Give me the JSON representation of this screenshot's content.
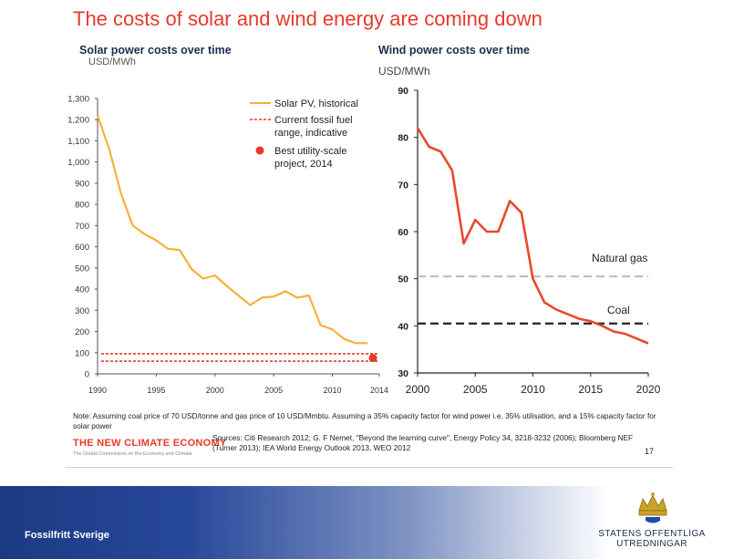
{
  "title": "The costs of solar and wind energy are coming down",
  "colors": {
    "accent": "#e8392b",
    "solar": "#f6b03c",
    "wind": "#e8492b",
    "navy": "#1f2d50"
  },
  "chart_data": [
    {
      "type": "line",
      "title": "Solar power costs over time",
      "ylabel": "USD/MWh",
      "xlim": [
        1990,
        2014
      ],
      "ylim": [
        0,
        1300
      ],
      "x_ticks": [
        1990,
        1995,
        2000,
        2005,
        2010,
        2014
      ],
      "y_ticks": [
        0,
        100,
        200,
        300,
        400,
        500,
        600,
        700,
        800,
        900,
        "1,000",
        "1,100",
        "1,200",
        "1,300"
      ],
      "legend_position": "top-right",
      "series": [
        {
          "name": "Solar PV, historical",
          "color": "#f6b03c",
          "x": [
            1990,
            1991,
            1992,
            1993,
            1994,
            1995,
            1996,
            1997,
            1998,
            1999,
            2000,
            2001,
            2002,
            2003,
            2004,
            2005,
            2006,
            2007,
            2008,
            2009,
            2010,
            2011,
            2012,
            2013
          ],
          "y": [
            1220,
            1060,
            850,
            700,
            660,
            630,
            590,
            585,
            495,
            450,
            465,
            415,
            370,
            325,
            360,
            365,
            390,
            360,
            370,
            230,
            210,
            165,
            145,
            145
          ]
        },
        {
          "name": "Current fossil fuel range, indicative",
          "style": "dashed",
          "color": "#e8392b",
          "bounds": [
            60,
            95
          ],
          "x_range": [
            1990,
            2014
          ]
        },
        {
          "name": "Best utility-scale project, 2014",
          "style": "point",
          "color": "#e8392b",
          "x": [
            2014
          ],
          "y": [
            75
          ]
        }
      ]
    },
    {
      "type": "line",
      "title": "Wind power costs over time",
      "ylabel": "USD/MWh",
      "xlim": [
        2000,
        2020
      ],
      "ylim": [
        30,
        90
      ],
      "x_ticks": [
        2000,
        2005,
        2010,
        2015,
        2020
      ],
      "y_ticks": [
        30,
        40,
        50,
        60,
        70,
        80,
        90
      ],
      "series": [
        {
          "color": "#e8492b",
          "x": [
            2000,
            2001,
            2002,
            2003,
            2004,
            2005,
            2006,
            2007,
            2008,
            2009,
            2010,
            2011,
            2012,
            2013,
            2014,
            2015,
            2016,
            2017,
            2018,
            2019,
            2020
          ],
          "y": [
            82,
            78,
            77,
            73,
            57.5,
            62.5,
            60,
            60,
            66.5,
            64,
            50,
            45,
            43.5,
            42.5,
            41.5,
            41,
            40,
            38.8,
            38.3,
            37.3,
            36.3
          ]
        },
        {
          "name": "Natural gas",
          "style": "dashed",
          "color": "#bbbbbb",
          "y": 50.5
        },
        {
          "name": "Coal",
          "style": "dashed",
          "color": "#222222",
          "y": 40.5
        }
      ]
    }
  ],
  "note": "Note: Assuming coal price of 70 USD/tonne and gas price of 10 USD/Mmbtu. Assuming a 35% capacity factor for wind power i.e. 35% utilisation, and a 15% capacity factor for solar power",
  "sources": "Sources: Citi Research 2012; G. F Nemet, \"Beyond the learning curve\", Energy Policy 34, 3218-3232 (2006); Bloomberg NEF (Turner 2013); IEA World Energy Outlook 2013, WEO 2012",
  "brand": {
    "name": "THE NEW CLIMATE ECONOMY",
    "subtitle": "The Global Commission on the Economy and Climate"
  },
  "page_number": "17",
  "footer": {
    "text": "Fossilfritt Sverige",
    "org_line1": "STATENS OFFENTLIGA",
    "org_line2": "UTREDNINGAR"
  }
}
